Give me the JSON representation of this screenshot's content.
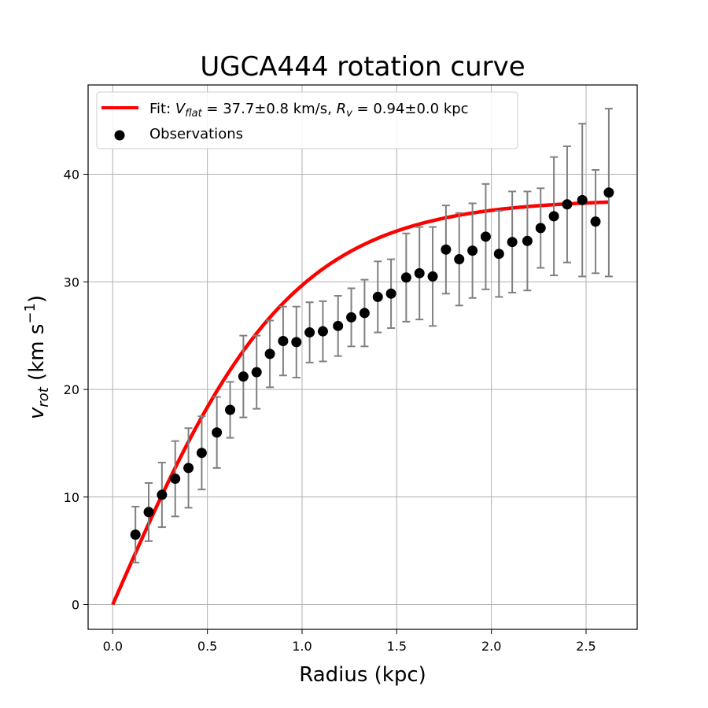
{
  "chart_data": {
    "type": "scatter",
    "title": "UGCA444 rotation curve",
    "xlabel": "Radius (kpc)",
    "ylabel": {
      "base": "v",
      "sub": "rot",
      "units": "(km s",
      "units_sup": "−1",
      "close": ")"
    },
    "xlim": [
      -0.13,
      2.77
    ],
    "ylim": [
      -2.3,
      48.3
    ],
    "xticks": [
      0.0,
      0.5,
      1.0,
      1.5,
      2.0,
      2.5
    ],
    "xtick_labels": [
      "0.0",
      "0.5",
      "1.0",
      "1.5",
      "2.0",
      "2.5"
    ],
    "yticks": [
      0,
      10,
      20,
      30,
      40
    ],
    "ytick_labels": [
      "0",
      "10",
      "20",
      "30",
      "40"
    ],
    "grid": true,
    "legend_position": "top-left",
    "colors": {
      "fit": "#ff0000",
      "points": "#000000",
      "errorbars": "#808080",
      "grid": "#b0b0b0"
    },
    "legend": {
      "fit": {
        "prefix": "Fit: ",
        "v_sym": "V",
        "v_sub": "flat",
        "v_val": " = 37.7±0.8 km/s, ",
        "r_sym": "R",
        "r_sub": "v",
        "r_val": " = 0.94±0.0 kpc"
      },
      "observations": "Observations"
    },
    "fit": {
      "model": "tanh",
      "Vflat": 37.7,
      "Rv": 0.94,
      "x_max": 2.62
    },
    "series": [
      {
        "name": "Observations",
        "x": [
          0.12,
          0.19,
          0.26,
          0.33,
          0.4,
          0.47,
          0.55,
          0.62,
          0.69,
          0.76,
          0.83,
          0.9,
          0.97,
          1.04,
          1.11,
          1.19,
          1.26,
          1.33,
          1.4,
          1.47,
          1.55,
          1.62,
          1.69,
          1.76,
          1.83,
          1.9,
          1.97,
          2.04,
          2.11,
          2.19,
          2.26,
          2.33,
          2.4,
          2.48,
          2.55,
          2.62
        ],
        "y": [
          6.5,
          8.6,
          10.2,
          11.7,
          12.7,
          14.1,
          16.0,
          18.1,
          21.2,
          21.6,
          23.3,
          24.5,
          24.4,
          25.3,
          25.4,
          25.9,
          26.7,
          27.1,
          28.6,
          28.9,
          30.4,
          30.8,
          30.5,
          33.0,
          32.1,
          32.9,
          34.2,
          32.6,
          33.7,
          33.8,
          35.0,
          36.1,
          37.2,
          37.6,
          35.6,
          38.3
        ],
        "yerr": [
          2.6,
          2.7,
          3.0,
          3.5,
          3.7,
          3.4,
          3.3,
          2.6,
          3.8,
          3.4,
          3.1,
          3.2,
          3.3,
          2.8,
          2.8,
          2.8,
          2.7,
          3.1,
          3.3,
          3.2,
          4.1,
          4.3,
          4.6,
          4.1,
          4.3,
          4.4,
          4.9,
          4.0,
          4.7,
          4.6,
          3.7,
          5.5,
          5.4,
          7.1,
          4.8,
          7.8
        ]
      }
    ]
  }
}
